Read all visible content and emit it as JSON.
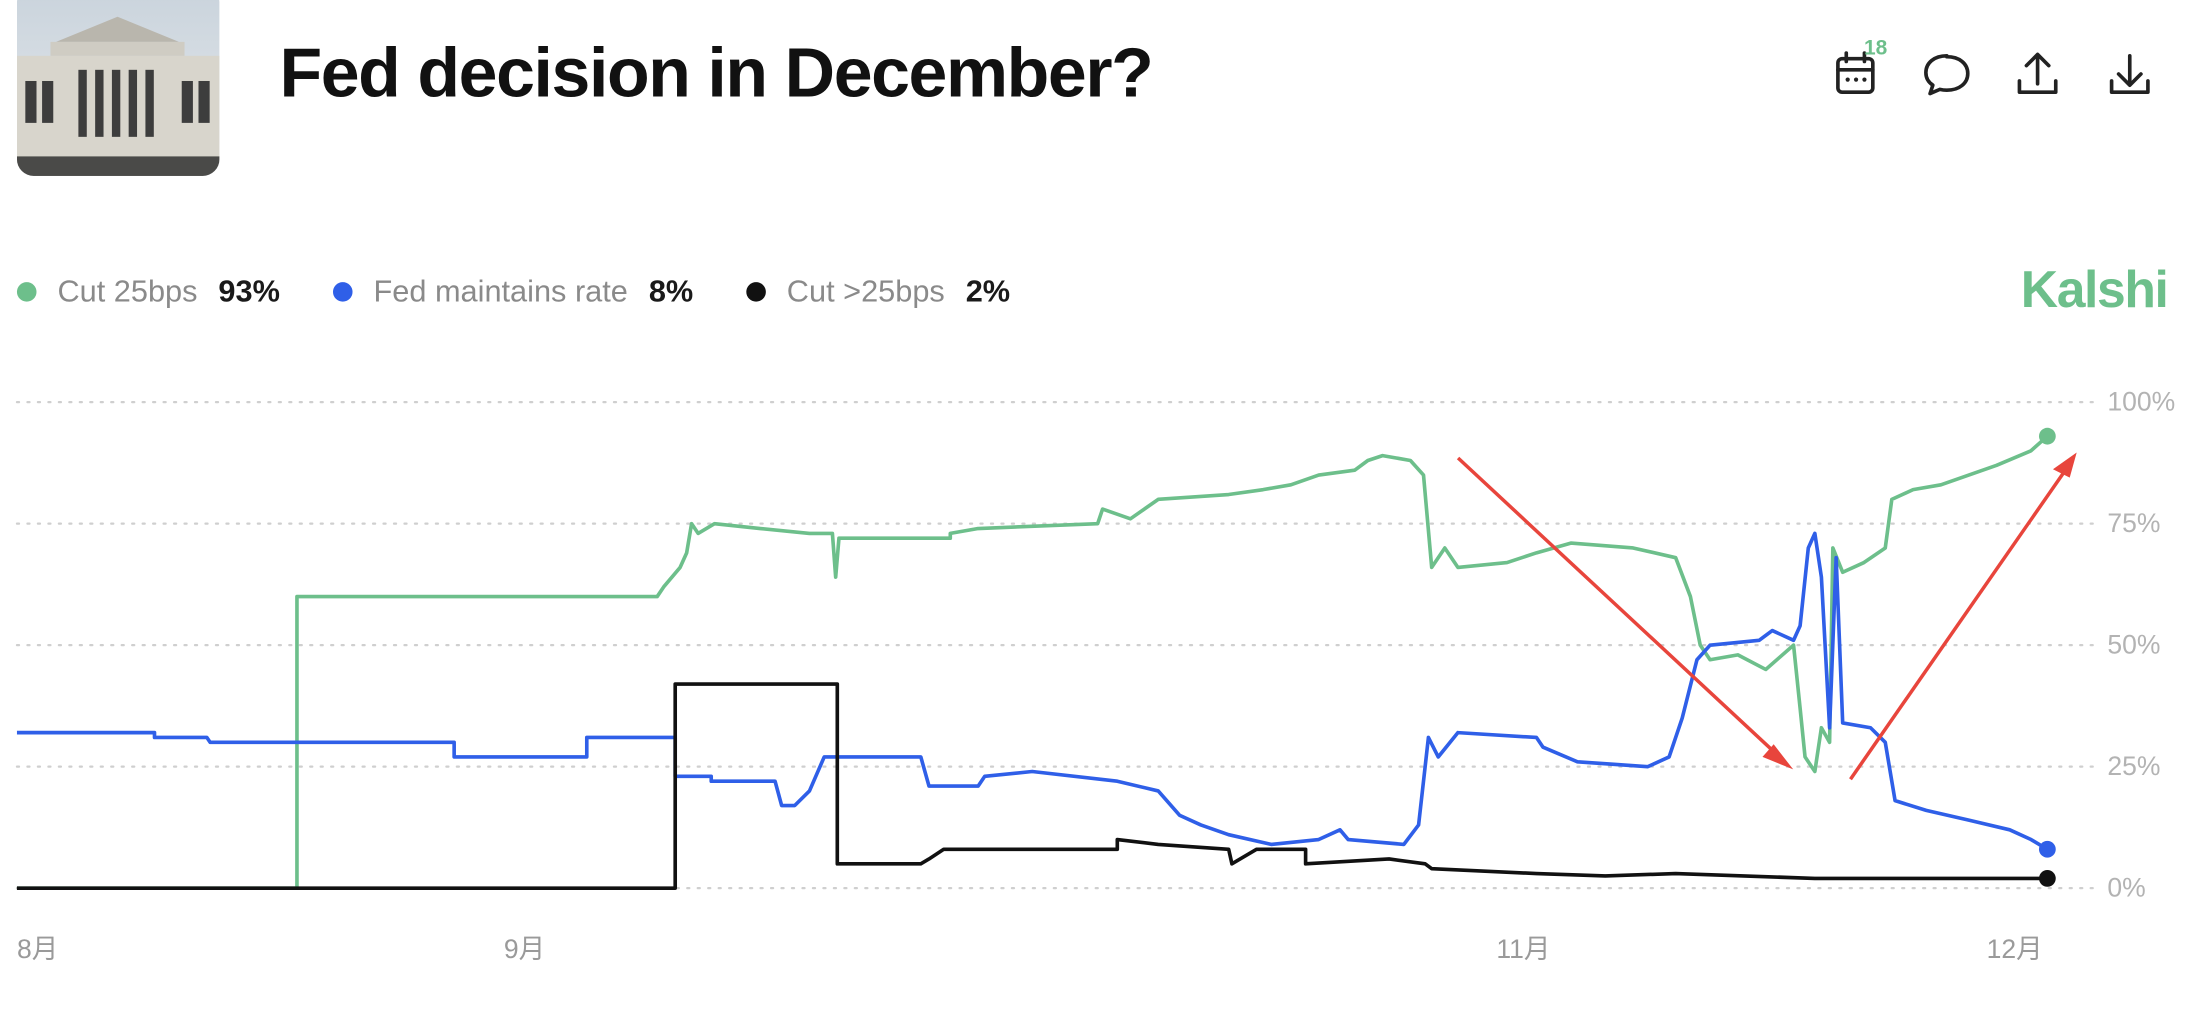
{
  "header": {
    "title": "Fed decision in December?",
    "badge": "18",
    "brand": "Kalshi"
  },
  "chart_data": {
    "type": "line",
    "legend": "top-left",
    "grid": true,
    "xlim": [
      0,
      124
    ],
    "xticks": [
      {
        "value": 0,
        "label": "8月"
      },
      {
        "value": 31,
        "label": "9月"
      },
      {
        "value": 92,
        "label": "11月"
      },
      {
        "value": 122,
        "label": "12月"
      }
    ],
    "ylim": [
      0,
      100
    ],
    "yticks": [
      {
        "value": 0,
        "label": "0%"
      },
      {
        "value": 25,
        "label": "25%"
      },
      {
        "value": 50,
        "label": "50%"
      },
      {
        "value": 75,
        "label": "75%"
      },
      {
        "value": 100,
        "label": "100%"
      }
    ],
    "series": [
      {
        "name": "Cut 25bps",
        "color": "#6dbf8b",
        "current": 93,
        "current_label": "93%",
        "x": [
          0,
          17.1,
          17.1,
          39.1,
          39.5,
          40.5,
          40.9,
          41.2,
          41.6,
          42.6,
          45.4,
          48.4,
          49.8,
          50,
          50.2,
          57,
          57,
          58.7,
          66,
          66.3,
          68,
          69.7,
          74,
          76.1,
          77.8,
          79.5,
          81.7,
          82.5,
          83.4,
          85.1,
          85.9,
          86.4,
          87.2,
          88,
          91,
          92.8,
          94.9,
          98.7,
          101.3,
          102.2,
          102.8,
          103.4,
          105.1,
          106.8,
          108.5,
          108.9,
          109.2,
          109.8,
          110.2,
          110.7,
          110.9,
          111.5,
          112.8,
          114.1,
          114.5,
          115.8,
          117.5,
          119.2,
          120.9,
          123,
          124
        ],
        "values": [
          0,
          0,
          60,
          60,
          62,
          66,
          69,
          75,
          73,
          75,
          74,
          73,
          73,
          64,
          72,
          72,
          73,
          74,
          75,
          78,
          76,
          80,
          81,
          82,
          83,
          85,
          86,
          88,
          89,
          88,
          85,
          66,
          70,
          66,
          67,
          69,
          71,
          70,
          68,
          60,
          50,
          47,
          48,
          45,
          50,
          37,
          27,
          24,
          33,
          30,
          70,
          65,
          67,
          70,
          80,
          82,
          83,
          85,
          87,
          90,
          93
        ]
      },
      {
        "name": "Fed maintains rate",
        "color": "#2f5fe8",
        "current": 8,
        "current_label": "8%",
        "x": [
          0,
          8.4,
          8.4,
          11.6,
          11.8,
          26.7,
          26.7,
          34.8,
          34.8,
          40.2,
          40.2,
          42.4,
          42.4,
          46.3,
          46.7,
          47.5,
          48.4,
          49.3,
          55.2,
          55.7,
          58.7,
          59.1,
          62,
          67.2,
          69.7,
          71,
          72.3,
          74,
          76.6,
          79.5,
          80.8,
          81.3,
          84.7,
          85.6,
          86.2,
          86.8,
          88,
          92.8,
          93.2,
          95.3,
          99.6,
          100.9,
          101.7,
          102.6,
          103.4,
          106.4,
          107.2,
          108.5,
          108.9,
          109.4,
          109.8,
          110.2,
          110.7,
          111.1,
          111.5,
          113.2,
          114.1,
          114.7,
          116.6,
          119.2,
          121.7,
          123,
          124
        ],
        "values": [
          32,
          32,
          31,
          31,
          30,
          30,
          27,
          27,
          31,
          31,
          23,
          23,
          22,
          22,
          17,
          17,
          20,
          27,
          27,
          21,
          21,
          23,
          24,
          22,
          20,
          15,
          13,
          11,
          9,
          10,
          12,
          10,
          9,
          13,
          31,
          27,
          32,
          31,
          29,
          26,
          25,
          27,
          35,
          47,
          50,
          51,
          53,
          51,
          54,
          70,
          73,
          64,
          33,
          68,
          34,
          33,
          30,
          18,
          16,
          14,
          12,
          10,
          8
        ]
      },
      {
        "name": "Cut >25bps",
        "color": "#111111",
        "current": 2,
        "current_label": "2%",
        "x": [
          0,
          40.2,
          40.2,
          50.1,
          50.1,
          55.2,
          55.7,
          56.6,
          67.2,
          67.2,
          69.7,
          74,
          74.2,
          75.7,
          78.7,
          78.7,
          83.8,
          86,
          86.4,
          92.8,
          97,
          101.3,
          109.8,
          124
        ],
        "values": [
          0,
          0,
          42,
          42,
          5,
          5,
          6,
          8,
          8,
          10,
          9,
          8,
          5,
          8,
          8,
          5,
          6,
          5,
          4,
          3,
          2.5,
          3,
          2,
          2
        ]
      }
    ]
  }
}
